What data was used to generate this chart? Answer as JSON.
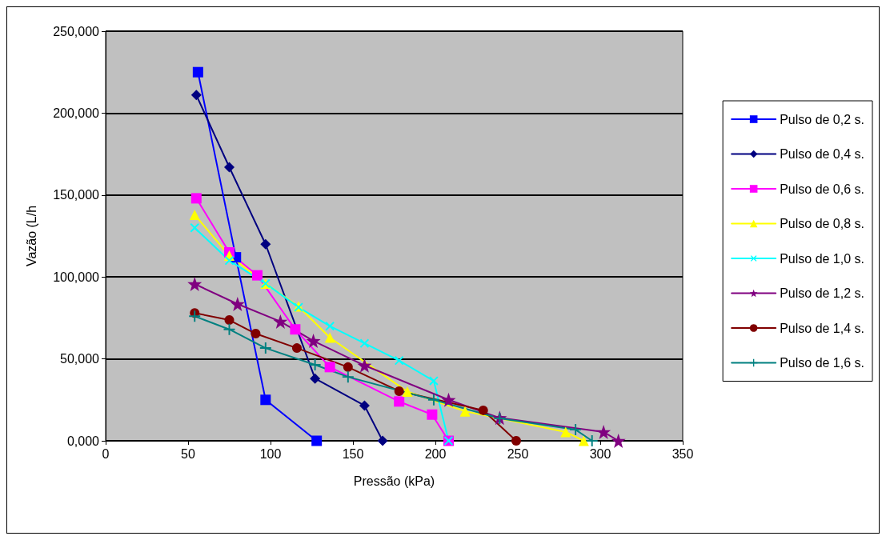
{
  "chart_data": {
    "type": "line",
    "xlabel": "Pressão (kPa)",
    "ylabel": "Vazão (L/h",
    "xlim": [
      0,
      350
    ],
    "xticks": [
      0,
      50,
      100,
      150,
      200,
      250,
      300,
      350
    ],
    "ylim": [
      0,
      250
    ],
    "yticks": [
      {
        "value": 0,
        "label": "0,000"
      },
      {
        "value": 50,
        "label": "50,000"
      },
      {
        "value": 100,
        "label": "100,000"
      },
      {
        "value": 150,
        "label": "150,000"
      },
      {
        "value": 200,
        "label": "200,000"
      },
      {
        "value": 250,
        "label": "250,000"
      }
    ],
    "grid": "y",
    "legend": "right",
    "line_style": "solid",
    "series": [
      {
        "name": "Pulso de 0,2 s.",
        "color": "#0000ff",
        "marker": "square",
        "x": [
          56,
          79,
          97,
          128
        ],
        "values": [
          225,
          112,
          25,
          0
        ]
      },
      {
        "name": "Pulso de 0,4 s.",
        "color": "#000080",
        "marker": "diamond",
        "x": [
          55,
          75,
          97,
          127,
          157,
          168
        ],
        "values": [
          211,
          167,
          120,
          38,
          21.5,
          0
        ]
      },
      {
        "name": "Pulso de 0,6 s.",
        "color": "#ff00ff",
        "marker": "square",
        "x": [
          55,
          75,
          92,
          115,
          136,
          178,
          198,
          208
        ],
        "values": [
          148,
          115,
          101,
          68,
          45,
          24,
          16,
          0
        ]
      },
      {
        "name": "Pulso de 0,8 s.",
        "color": "#ffff00",
        "marker": "triangle",
        "x": [
          54,
          75,
          97,
          117,
          136,
          183,
          218,
          279,
          290
        ],
        "values": [
          138,
          113,
          96,
          82,
          63,
          30,
          18,
          5.4,
          0
        ]
      },
      {
        "name": "Pulso de 1,0 s.",
        "color": "#00ffff",
        "marker": "cross",
        "x": [
          54,
          75,
          97,
          117,
          136,
          157,
          178,
          199,
          208
        ],
        "values": [
          130,
          110,
          96,
          81.5,
          70,
          59.5,
          49,
          36.6,
          0
        ]
      },
      {
        "name": "Pulso de 1,2 s.",
        "color": "#800080",
        "marker": "star",
        "x": [
          54,
          80,
          106,
          126,
          157,
          208,
          239,
          302,
          311
        ],
        "values": [
          95.7,
          83.5,
          72.8,
          61,
          46,
          25,
          14,
          5.4,
          0
        ]
      },
      {
        "name": "Pulso de 1,4 s.",
        "color": "#800000",
        "marker": "circle",
        "x": [
          54,
          75,
          91,
          116,
          147,
          178,
          229,
          249
        ],
        "values": [
          78,
          73.7,
          65.4,
          56.6,
          45,
          30.3,
          18.6,
          0
        ]
      },
      {
        "name": "Pulso de 1,6 s.",
        "color": "#008080",
        "marker": "plus",
        "x": [
          54,
          75,
          97,
          127,
          147,
          199,
          239,
          285,
          295
        ],
        "values": [
          76,
          68,
          56.6,
          46.4,
          39,
          25,
          13.7,
          6.8,
          0
        ]
      }
    ]
  }
}
